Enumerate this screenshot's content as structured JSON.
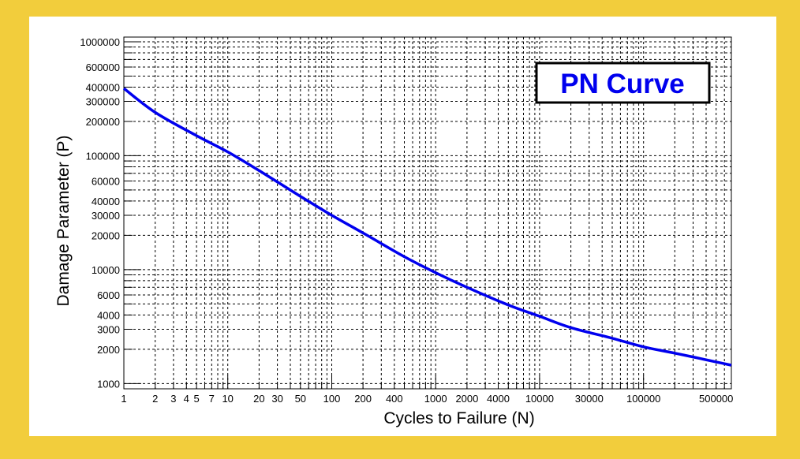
{
  "chart_data": {
    "type": "line",
    "title": "PN Curve",
    "xlabel": "Cycles to Failure (N)",
    "ylabel": "Damage Parameter (P)",
    "x_scale": "log",
    "y_scale": "log",
    "xlim": [
      1,
      700000
    ],
    "ylim": [
      900,
      1100000
    ],
    "grid": true,
    "legend": "none",
    "line_color": "#0000ee",
    "title_color": "#0000ee",
    "x_tick_labels": [
      {
        "value": 1,
        "label": "1"
      },
      {
        "value": 2,
        "label": "2"
      },
      {
        "value": 3,
        "label": "3"
      },
      {
        "value": 4,
        "label": "4"
      },
      {
        "value": 5,
        "label": "5"
      },
      {
        "value": 7,
        "label": "7"
      },
      {
        "value": 10,
        "label": "10"
      },
      {
        "value": 20,
        "label": "20"
      },
      {
        "value": 30,
        "label": "30"
      },
      {
        "value": 50,
        "label": "50"
      },
      {
        "value": 100,
        "label": "100"
      },
      {
        "value": 200,
        "label": "200"
      },
      {
        "value": 400,
        "label": "400"
      },
      {
        "value": 1000,
        "label": "1000"
      },
      {
        "value": 2000,
        "label": "2000"
      },
      {
        "value": 4000,
        "label": "4000"
      },
      {
        "value": 10000,
        "label": "10000"
      },
      {
        "value": 30000,
        "label": "30000"
      },
      {
        "value": 100000,
        "label": "100000"
      },
      {
        "value": 500000,
        "label": "500000"
      }
    ],
    "y_tick_labels": [
      {
        "value": 1000,
        "label": "1000"
      },
      {
        "value": 2000,
        "label": "2000"
      },
      {
        "value": 3000,
        "label": "3000"
      },
      {
        "value": 4000,
        "label": "4000"
      },
      {
        "value": 6000,
        "label": "6000"
      },
      {
        "value": 10000,
        "label": "10000"
      },
      {
        "value": 20000,
        "label": "20000"
      },
      {
        "value": 30000,
        "label": "30000"
      },
      {
        "value": 40000,
        "label": "40000"
      },
      {
        "value": 60000,
        "label": "60000"
      },
      {
        "value": 100000,
        "label": "100000"
      },
      {
        "value": 200000,
        "label": "200000"
      },
      {
        "value": 300000,
        "label": "300000"
      },
      {
        "value": 400000,
        "label": "400000"
      },
      {
        "value": 600000,
        "label": "600000"
      },
      {
        "value": 1000000,
        "label": "1000000"
      }
    ],
    "series": [
      {
        "x": [
          1,
          2,
          5,
          10,
          20,
          50,
          100,
          200,
          500,
          1000,
          2000,
          5000,
          10000,
          20000,
          50000,
          100000,
          200000,
          500000,
          700000
        ],
        "y": [
          390000,
          240000,
          150000,
          108000,
          74000,
          44000,
          30000,
          21000,
          13000,
          9400,
          7000,
          4900,
          3900,
          3100,
          2500,
          2100,
          1850,
          1550,
          1450
        ]
      }
    ]
  }
}
